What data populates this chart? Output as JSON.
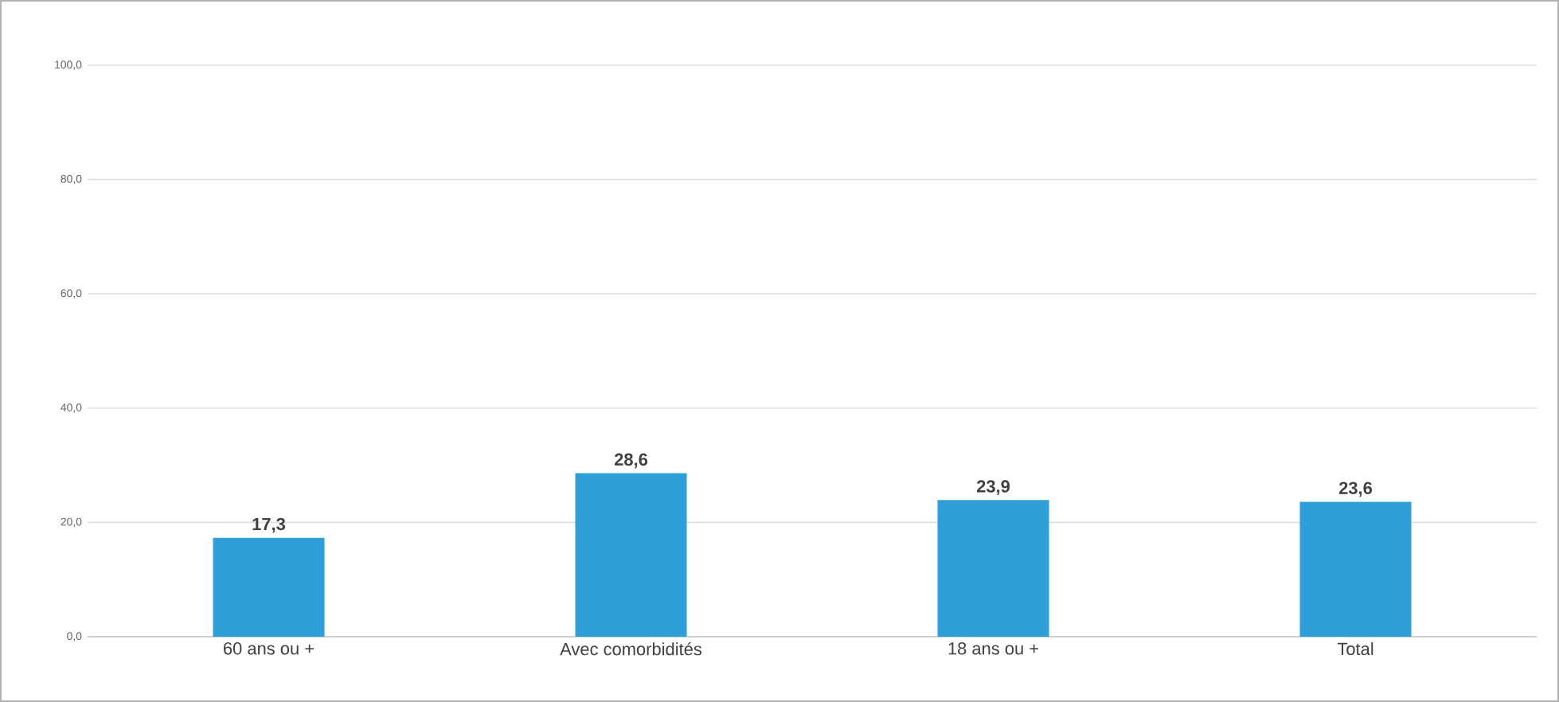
{
  "chart_data": {
    "type": "bar",
    "categories": [
      "60 ans ou +",
      "Avec comorbidités",
      "18 ans ou +",
      "Total"
    ],
    "values": [
      17.3,
      28.6,
      23.9,
      23.6
    ],
    "value_labels": [
      "17,3",
      "28,6",
      "23,9",
      "23,6"
    ],
    "color": "#2e9fd8",
    "ylim": [
      0,
      100
    ],
    "yticks": [
      {
        "value": 0,
        "label": "0,0"
      },
      {
        "value": 20,
        "label": "20,0"
      },
      {
        "value": 40,
        "label": "40,0"
      },
      {
        "value": 60,
        "label": "60,0"
      },
      {
        "value": 80,
        "label": "80,0"
      },
      {
        "value": 100,
        "label": "100,0"
      }
    ],
    "grid": "y"
  }
}
